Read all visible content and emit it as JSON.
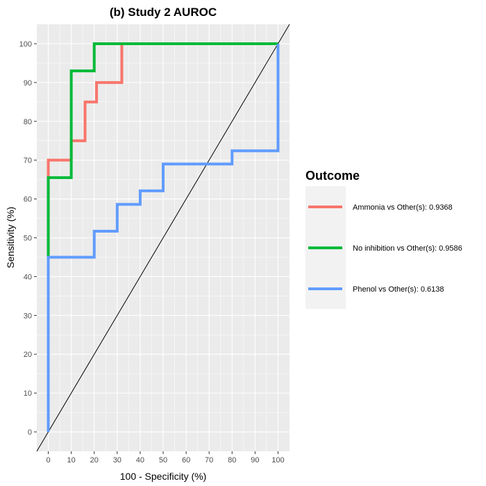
{
  "chart_data": {
    "type": "line",
    "title": "(b) Study 2 AUROC",
    "xlabel": "100 - Specificity (%)",
    "ylabel": "Sensitivity (%)",
    "xlim": [
      -5,
      105
    ],
    "ylim": [
      -5,
      105
    ],
    "xticks": [
      "0",
      "10",
      "20",
      "30",
      "40",
      "50",
      "60",
      "70",
      "80",
      "90",
      "100"
    ],
    "yticks": [
      "0",
      "10",
      "20",
      "30",
      "40",
      "50",
      "60",
      "70",
      "80",
      "90",
      "100"
    ],
    "grid": true,
    "legend": {
      "title": "Outcome",
      "position": "right"
    },
    "reference_line": {
      "x": [
        -5,
        105
      ],
      "y": [
        -5,
        105
      ]
    },
    "series": [
      {
        "name": "Ammonia vs Other(s): 0.9368",
        "color": "#F8766D",
        "x": [
          0,
          0,
          10,
          10,
          16,
          16,
          21,
          21,
          32,
          32,
          100
        ],
        "y": [
          45,
          70,
          70,
          75,
          75,
          85,
          85,
          90,
          90,
          100,
          100
        ]
      },
      {
        "name": "No inhibition vs Other(s): 0.9586",
        "color": "#00BA38",
        "x": [
          0,
          0,
          10,
          10,
          20,
          20,
          100
        ],
        "y": [
          45,
          65.5,
          65.5,
          93,
          93,
          100,
          100
        ]
      },
      {
        "name": "Phenol vs Other(s): 0.6138",
        "color": "#619CFF",
        "x": [
          0,
          0,
          20,
          20,
          30,
          30,
          40,
          40,
          50,
          50,
          80,
          80,
          100,
          100
        ],
        "y": [
          0,
          45,
          45,
          51.7,
          51.7,
          58.6,
          58.6,
          62.1,
          62.1,
          69,
          69,
          72.4,
          72.4,
          100
        ]
      }
    ]
  }
}
